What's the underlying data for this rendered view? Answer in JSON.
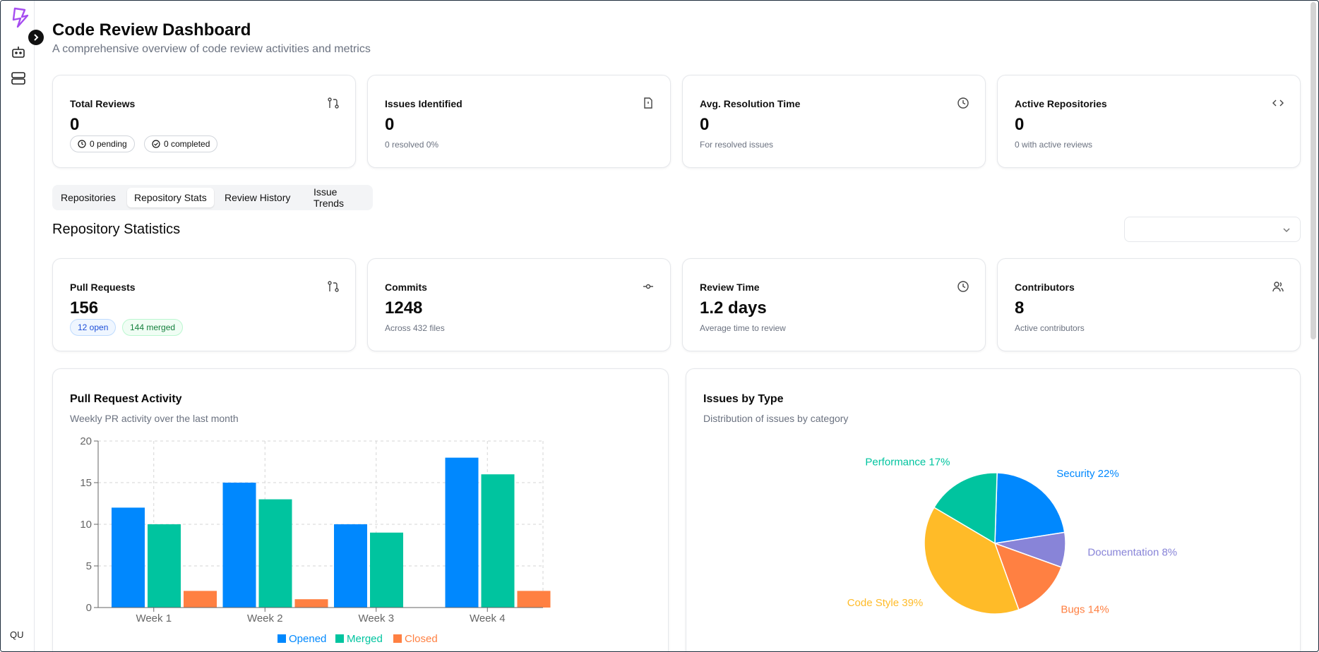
{
  "header": {
    "title": "Code Review Dashboard",
    "subtitle": "A comprehensive overview of code review activities and metrics"
  },
  "sidebar": {
    "user_initials": "QU"
  },
  "summary_cards": [
    {
      "title": "Total Reviews",
      "value": "0",
      "icon": "pull-request-icon",
      "pending": "0 pending",
      "completed": "0 completed"
    },
    {
      "title": "Issues Identified",
      "value": "0",
      "icon": "file-alert-icon",
      "note": "0 resolved 0%"
    },
    {
      "title": "Avg. Resolution Time",
      "value": "0",
      "icon": "clock-icon",
      "note": "For resolved issues"
    },
    {
      "title": "Active Repositories",
      "value": "0",
      "icon": "code-icon",
      "note": "0 with active reviews"
    }
  ],
  "tabs": [
    "Repositories",
    "Repository Stats",
    "Review History",
    "Issue Trends"
  ],
  "active_tab": "Repository Stats",
  "section": {
    "title": "Repository Statistics",
    "selector_value": ""
  },
  "repo_cards": [
    {
      "title": "Pull Requests",
      "value": "156",
      "icon": "pull-request-icon",
      "open": "12 open",
      "merged": "144 merged"
    },
    {
      "title": "Commits",
      "value": "1248",
      "icon": "commit-icon",
      "note": "Across 432 files"
    },
    {
      "title": "Review Time",
      "value": "1.2 days",
      "icon": "clock-icon",
      "note": "Average time to review"
    },
    {
      "title": "Contributors",
      "value": "8",
      "icon": "users-icon",
      "note": "Active contributors"
    }
  ],
  "pr_panel": {
    "title": "Pull Request Activity",
    "subtitle": "Weekly PR activity over the last month"
  },
  "issues_panel": {
    "title": "Issues by Type",
    "subtitle": "Distribution of issues by category"
  },
  "colors": {
    "opened": "#0088fe",
    "merged": "#00c49f",
    "closed": "#ff8042",
    "code_style": "#ffbb28",
    "documentation": "#8884d8"
  },
  "chart_data": [
    {
      "type": "bar",
      "title": "Pull Request Activity",
      "categories": [
        "Week 1",
        "Week 2",
        "Week 3",
        "Week 4"
      ],
      "series": [
        {
          "name": "Opened",
          "values": [
            12,
            15,
            10,
            18
          ]
        },
        {
          "name": "Merged",
          "values": [
            10,
            13,
            9,
            16
          ]
        },
        {
          "name": "Closed",
          "values": [
            2,
            1,
            0,
            2
          ]
        }
      ],
      "ylim": [
        0,
        20
      ],
      "yticks": [
        0,
        5,
        10,
        15,
        20
      ],
      "grid": true
    },
    {
      "type": "pie",
      "title": "Issues by Type",
      "slices": [
        {
          "label": "Security",
          "value": 22,
          "text": "Security 22%",
          "color": "#0088fe"
        },
        {
          "label": "Documentation",
          "value": 8,
          "text": "Documentation 8%",
          "color": "#8884d8"
        },
        {
          "label": "Bugs",
          "value": 14,
          "text": "Bugs 14%",
          "color": "#ff8042"
        },
        {
          "label": "Code Style",
          "value": 39,
          "text": "Code Style 39%",
          "color": "#ffbb28"
        },
        {
          "label": "Performance",
          "value": 17,
          "text": "Performance 17%",
          "color": "#00c49f"
        }
      ]
    }
  ]
}
